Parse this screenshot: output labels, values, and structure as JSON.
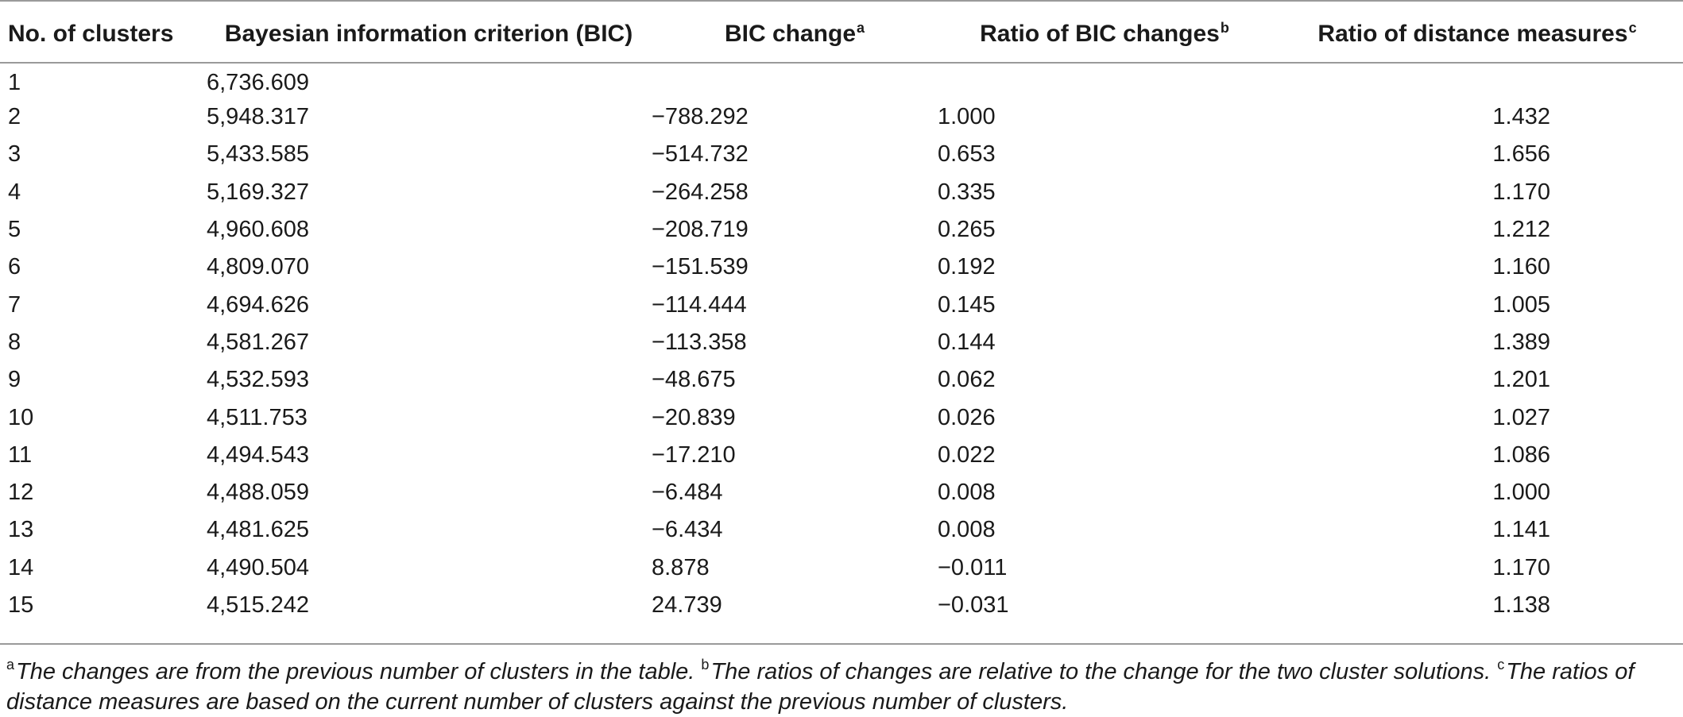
{
  "table": {
    "headers": [
      {
        "text": "No. of clusters",
        "sup": ""
      },
      {
        "text": "Bayesian information criterion (BIC)",
        "sup": ""
      },
      {
        "text": "BIC change",
        "sup": "a"
      },
      {
        "text": "Ratio of BIC changes",
        "sup": "b"
      },
      {
        "text": "Ratio of distance measures",
        "sup": "c"
      }
    ],
    "rows": [
      [
        "1",
        "6,736.609",
        "",
        "",
        ""
      ],
      [
        "2",
        "5,948.317",
        "−788.292",
        "1.000",
        "1.432"
      ],
      [
        "3",
        "5,433.585",
        "−514.732",
        "0.653",
        "1.656"
      ],
      [
        "4",
        "5,169.327",
        "−264.258",
        "0.335",
        "1.170"
      ],
      [
        "5",
        "4,960.608",
        "−208.719",
        "0.265",
        "1.212"
      ],
      [
        "6",
        "4,809.070",
        "−151.539",
        "0.192",
        "1.160"
      ],
      [
        "7",
        "4,694.626",
        "−114.444",
        "0.145",
        "1.005"
      ],
      [
        "8",
        "4,581.267",
        "−113.358",
        "0.144",
        "1.389"
      ],
      [
        "9",
        "4,532.593",
        "−48.675",
        "0.062",
        "1.201"
      ],
      [
        "10",
        "4,511.753",
        "−20.839",
        "0.026",
        "1.027"
      ],
      [
        "11",
        "4,494.543",
        "−17.210",
        "0.022",
        "1.086"
      ],
      [
        "12",
        "4,488.059",
        "−6.484",
        "0.008",
        "1.000"
      ],
      [
        "13",
        "4,481.625",
        "−6.434",
        "0.008",
        "1.141"
      ],
      [
        "14",
        "4,490.504",
        "8.878",
        "−0.011",
        "1.170"
      ],
      [
        "15",
        "4,515.242",
        "24.739",
        "−0.031",
        "1.138"
      ]
    ]
  },
  "footnotes": [
    {
      "mark": "a",
      "text": "The changes are from the previous number of clusters in the table."
    },
    {
      "mark": "b",
      "text": "The ratios of changes are relative to the change for the two cluster solutions."
    },
    {
      "mark": "c",
      "text": "The ratios of distance measures are based on the current number of clusters against the previous number of clusters."
    }
  ]
}
